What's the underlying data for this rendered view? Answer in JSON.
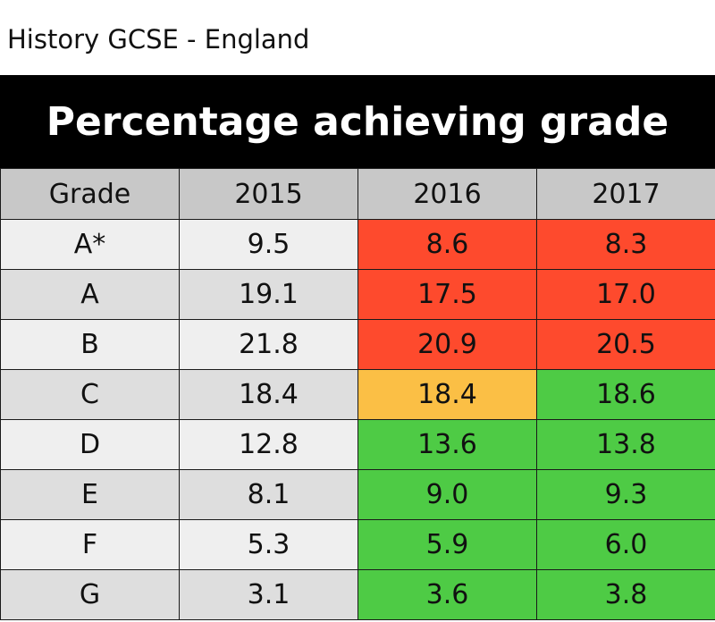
{
  "subtitle": "History GCSE - England",
  "title": "Percentage achieving grade",
  "colors": {
    "banner_bg": "#000000",
    "header_bg": "#c8c8c8",
    "row_light": "#efefef",
    "row_dark": "#dedede",
    "decrease": "#fe4a2d",
    "no_change": "#fbbf45",
    "increase": "#4ecb45"
  },
  "chart_data": {
    "type": "table",
    "title": "Percentage achieving grade",
    "subtitle": "History GCSE - England",
    "columns": [
      "Grade",
      "2015",
      "2016",
      "2017"
    ],
    "rows": [
      {
        "grade": "A*",
        "values": [
          "9.5",
          "8.6",
          "8.3"
        ],
        "status": [
          "neutral",
          "red",
          "red"
        ]
      },
      {
        "grade": "A",
        "values": [
          "19.1",
          "17.5",
          "17.0"
        ],
        "status": [
          "neutral",
          "red",
          "red"
        ]
      },
      {
        "grade": "B",
        "values": [
          "21.8",
          "20.9",
          "20.5"
        ],
        "status": [
          "neutral",
          "red",
          "red"
        ]
      },
      {
        "grade": "C",
        "values": [
          "18.4",
          "18.4",
          "18.6"
        ],
        "status": [
          "neutral",
          "amber",
          "green"
        ]
      },
      {
        "grade": "D",
        "values": [
          "12.8",
          "13.6",
          "13.8"
        ],
        "status": [
          "neutral",
          "green",
          "green"
        ]
      },
      {
        "grade": "E",
        "values": [
          "8.1",
          "9.0",
          "9.3"
        ],
        "status": [
          "neutral",
          "green",
          "green"
        ]
      },
      {
        "grade": "F",
        "values": [
          "5.3",
          "5.9",
          "6.0"
        ],
        "status": [
          "neutral",
          "green",
          "green"
        ]
      },
      {
        "grade": "G",
        "values": [
          "3.1",
          "3.6",
          "3.8"
        ],
        "status": [
          "neutral",
          "green",
          "green"
        ]
      }
    ]
  }
}
